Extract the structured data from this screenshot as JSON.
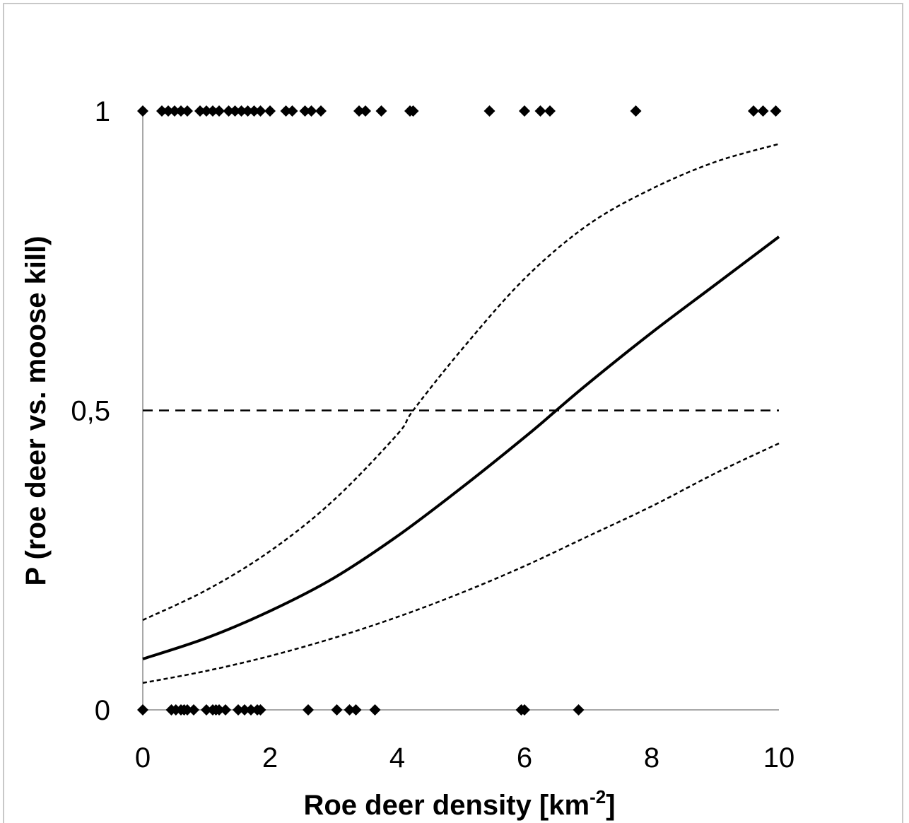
{
  "chart_data": {
    "type": "scatter",
    "xlabel": "Roe deer density [km",
    "xlabel_sup": "-2",
    "xlabel_end": "]",
    "ylabel": "P (roe deer vs. moose kill)",
    "xlim": [
      0,
      10
    ],
    "ylim": [
      0,
      1
    ],
    "x_ticks": [
      0,
      2,
      4,
      6,
      8,
      10
    ],
    "x_tick_labels": [
      "0",
      "2",
      "4",
      "6",
      "8",
      "10"
    ],
    "y_ticks": [
      0,
      0.5,
      1
    ],
    "y_tick_labels": [
      "0",
      "0,5",
      "1"
    ],
    "grid": false,
    "legend": "none",
    "series": [
      {
        "kind": "points",
        "color": "#000000",
        "marker": "diamond",
        "x": [
          0,
          0.3,
          0.4,
          0.5,
          0.6,
          0.7,
          0.9,
          1.0,
          1.1,
          1.2,
          1.35,
          1.45,
          1.55,
          1.65,
          1.75,
          1.85,
          2.0,
          2.25,
          2.35,
          2.55,
          2.65,
          2.8,
          3.4,
          3.5,
          3.75,
          4.2,
          4.25,
          5.45,
          6.0,
          6.25,
          6.4,
          7.75,
          9.6,
          9.75,
          9.95,
          0,
          0.45,
          0.52,
          0.6,
          0.65,
          0.7,
          0.8,
          1.0,
          1.1,
          1.15,
          1.2,
          1.3,
          1.5,
          1.6,
          1.7,
          1.8,
          1.85,
          2.6,
          3.05,
          3.25,
          3.35,
          3.65,
          5.95,
          6.0,
          6.85
        ],
        "y": [
          1,
          1,
          1,
          1,
          1,
          1,
          1,
          1,
          1,
          1,
          1,
          1,
          1,
          1,
          1,
          1,
          1,
          1,
          1,
          1,
          1,
          1,
          1,
          1,
          1,
          1,
          1,
          1,
          1,
          1,
          1,
          1,
          1,
          1,
          1,
          0,
          0,
          0,
          0,
          0,
          0,
          0,
          0,
          0,
          0,
          0,
          0,
          0,
          0,
          0,
          0,
          0,
          0,
          0,
          0,
          0,
          0,
          0,
          0,
          0
        ]
      },
      {
        "kind": "curve",
        "line_style": "solid",
        "color": "#000000",
        "x": [
          0,
          1,
          2,
          3,
          4,
          5,
          6,
          6.5,
          7,
          8,
          9,
          10
        ],
        "y": [
          0.085,
          0.12,
          0.165,
          0.22,
          0.29,
          0.37,
          0.455,
          0.5,
          0.545,
          0.63,
          0.71,
          0.79
        ]
      },
      {
        "kind": "curve",
        "line_style": "dotted",
        "color": "#000000",
        "x": [
          0,
          1,
          2,
          3,
          4,
          4.25,
          5,
          6,
          7,
          8,
          9,
          10
        ],
        "y": [
          0.15,
          0.2,
          0.265,
          0.35,
          0.46,
          0.5,
          0.6,
          0.72,
          0.81,
          0.87,
          0.915,
          0.945
        ]
      },
      {
        "kind": "curve",
        "line_style": "dotted",
        "color": "#000000",
        "x": [
          0,
          1,
          2,
          3,
          4,
          5,
          6,
          7,
          8,
          9,
          10
        ],
        "y": [
          0.045,
          0.065,
          0.09,
          0.12,
          0.155,
          0.195,
          0.24,
          0.29,
          0.34,
          0.395,
          0.445
        ]
      },
      {
        "kind": "reference_line",
        "line_style": "dashed",
        "color": "#000000",
        "y": 0.5
      }
    ]
  }
}
